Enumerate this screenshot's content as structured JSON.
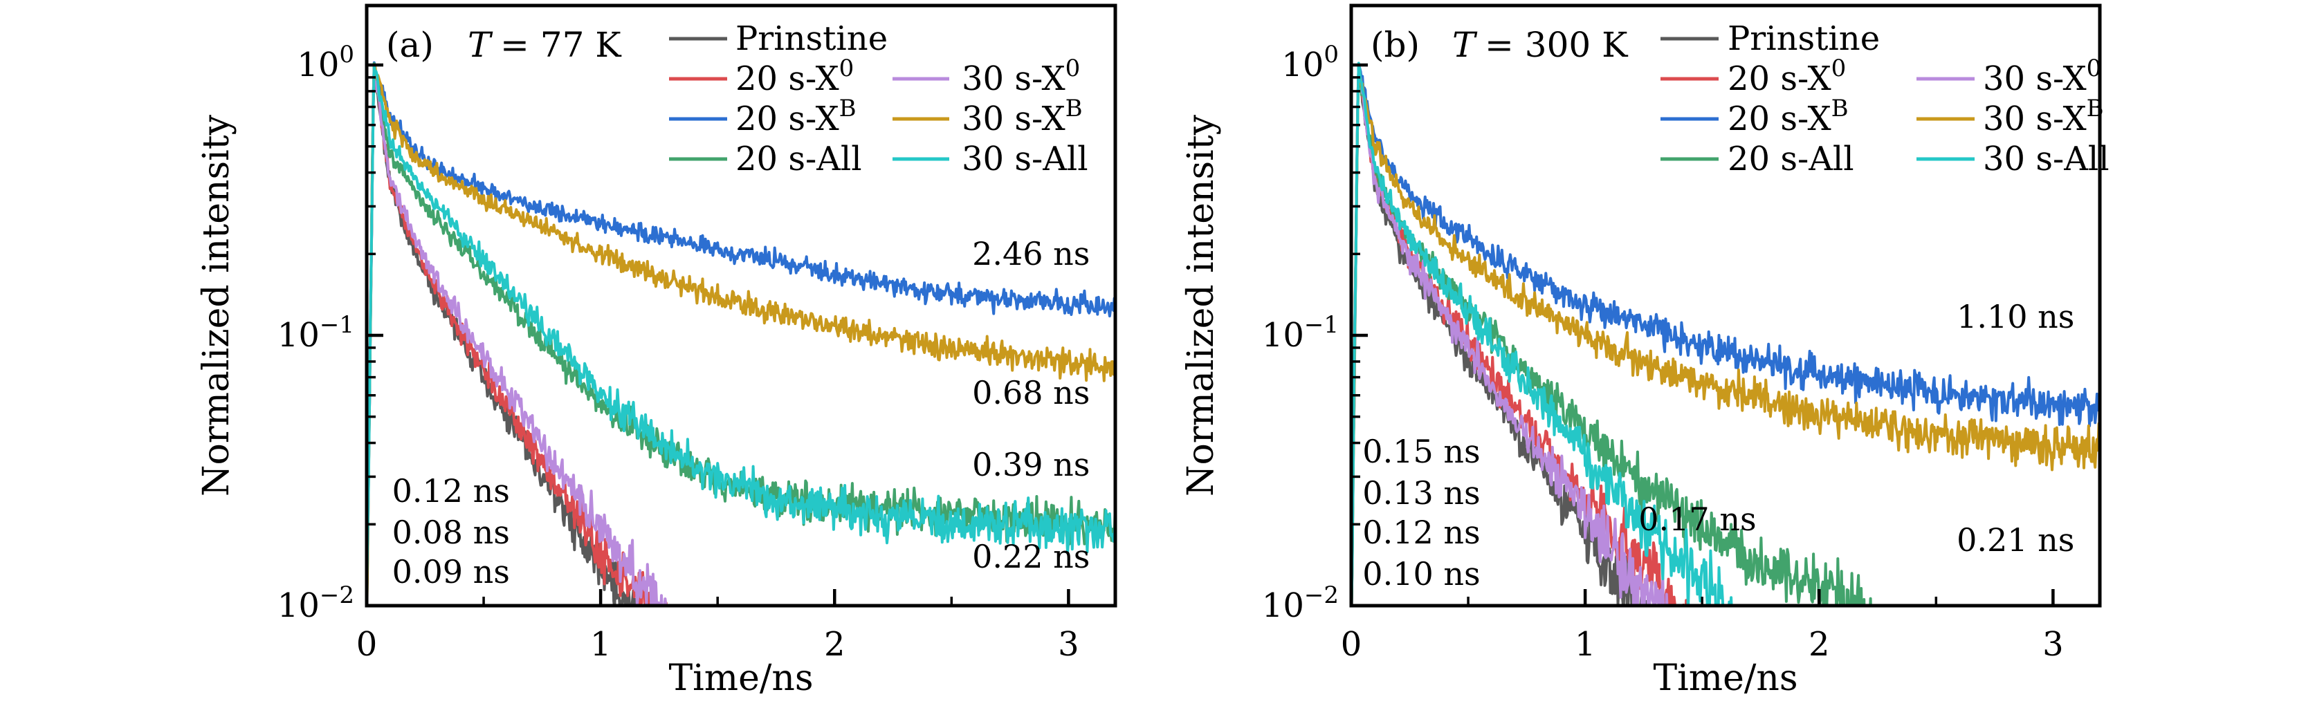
{
  "chart_data": [
    {
      "type": "line",
      "panel_index_label": "(a)",
      "temperature_label": {
        "symbol": "T",
        "rest": "= 77 K"
      },
      "xlabel": "Time/ns",
      "ylabel": "Normalized intensity",
      "xlim": [
        0,
        3.2
      ],
      "x_major_ticks": [
        0,
        1,
        2,
        3
      ],
      "x_minor_ticks": [
        0.5,
        1.5,
        2.5
      ],
      "yscale": "log",
      "ylim_log10": [
        -2,
        0.22
      ],
      "y_major_ticks": [
        {
          "log10": 0,
          "mantissa": "10",
          "exponent": "0"
        },
        {
          "log10": -1,
          "mantissa": "10",
          "exponent": "−1"
        },
        {
          "log10": -2,
          "mantissa": "10",
          "exponent": "−2"
        }
      ],
      "legend": {
        "columns": [
          [
            0,
            1,
            2,
            3
          ],
          [
            4,
            5,
            6
          ]
        ]
      },
      "noise_model": {
        "base": 0.018,
        "coef": 0.1,
        "cap": 0.26
      },
      "samples_per_ns": 250,
      "series": [
        {
          "label": "Prinstine",
          "label_sup": "",
          "color": "#595959",
          "lifetime": "0.09 ns",
          "annotation": {
            "text": "0.09 ns",
            "t": 0.36,
            "log10_v": -1.875
          },
          "curve_log10": [
            [
              0,
              -2.05
            ],
            [
              0.03,
              0
            ],
            [
              0.1,
              -0.45
            ],
            [
              0.2,
              -0.68
            ],
            [
              0.3,
              -0.86
            ],
            [
              0.4,
              -1.0
            ],
            [
              0.5,
              -1.15
            ],
            [
              0.75,
              -1.52
            ],
            [
              1.0,
              -1.87
            ],
            [
              1.12,
              -2.0
            ],
            [
              1.3,
              -2.3
            ]
          ]
        },
        {
          "label": "20 s-X",
          "label_sup": "0",
          "color": "#dc4b4e",
          "lifetime": "0.08 ns",
          "annotation": {
            "text": "0.08 ns",
            "t": 0.36,
            "log10_v": -1.729
          },
          "curve_log10": [
            [
              0,
              -2.05
            ],
            [
              0.03,
              0
            ],
            [
              0.1,
              -0.44
            ],
            [
              0.2,
              -0.66
            ],
            [
              0.3,
              -0.84
            ],
            [
              0.4,
              -0.98
            ],
            [
              0.5,
              -1.12
            ],
            [
              0.75,
              -1.47
            ],
            [
              1.0,
              -1.8
            ],
            [
              1.2,
              -2.02
            ],
            [
              1.35,
              -2.3
            ]
          ]
        },
        {
          "label": "20 s-X",
          "label_sup": "B",
          "color": "#2c6fd1",
          "lifetime": "2.46 ns",
          "annotation": {
            "text": "2.46 ns",
            "t": 2.84,
            "log10_v": -0.698
          },
          "curve_log10": [
            [
              0,
              -2.05
            ],
            [
              0.03,
              0
            ],
            [
              0.1,
              -0.19
            ],
            [
              0.2,
              -0.31
            ],
            [
              0.3,
              -0.38
            ],
            [
              0.5,
              -0.46
            ],
            [
              0.75,
              -0.535
            ],
            [
              1.0,
              -0.59
            ],
            [
              1.5,
              -0.68
            ],
            [
              2.0,
              -0.775
            ],
            [
              2.5,
              -0.85
            ],
            [
              3.2,
              -0.9
            ]
          ]
        },
        {
          "label": "20 s-All",
          "label_sup": "",
          "color": "#42a36c",
          "lifetime": "0.39 ns",
          "annotation": {
            "text": "0.39 ns",
            "t": 2.84,
            "log10_v": -1.478
          },
          "curve_log10": [
            [
              0,
              -2.05
            ],
            [
              0.03,
              0
            ],
            [
              0.1,
              -0.33
            ],
            [
              0.25,
              -0.52
            ],
            [
              0.5,
              -0.77
            ],
            [
              0.75,
              -1.02
            ],
            [
              1.0,
              -1.26
            ],
            [
              1.25,
              -1.42
            ],
            [
              1.5,
              -1.54
            ],
            [
              1.75,
              -1.6
            ],
            [
              2.0,
              -1.63
            ],
            [
              2.5,
              -1.66
            ],
            [
              3.2,
              -1.7
            ]
          ]
        },
        {
          "label": "30 s-X",
          "label_sup": "0",
          "color": "#b98bdd",
          "lifetime": "0.12 ns",
          "annotation": {
            "text": "0.12 ns",
            "t": 0.36,
            "log10_v": -1.576
          },
          "curve_log10": [
            [
              0,
              -2.05
            ],
            [
              0.03,
              0
            ],
            [
              0.1,
              -0.42
            ],
            [
              0.2,
              -0.63
            ],
            [
              0.3,
              -0.8
            ],
            [
              0.4,
              -0.94
            ],
            [
              0.5,
              -1.07
            ],
            [
              0.75,
              -1.4
            ],
            [
              1.0,
              -1.72
            ],
            [
              1.28,
              -2.02
            ],
            [
              1.45,
              -2.3
            ]
          ]
        },
        {
          "label": "30 s-X",
          "label_sup": "B",
          "color": "#c9991c",
          "lifetime": "0.68 ns",
          "annotation": {
            "text": "0.68 ns",
            "t": 2.84,
            "log10_v": -1.212
          },
          "curve_log10": [
            [
              0,
              -2.05
            ],
            [
              0.03,
              0
            ],
            [
              0.1,
              -0.21
            ],
            [
              0.2,
              -0.33
            ],
            [
              0.3,
              -0.4
            ],
            [
              0.5,
              -0.5
            ],
            [
              0.75,
              -0.6
            ],
            [
              1.0,
              -0.7
            ],
            [
              1.5,
              -0.86
            ],
            [
              2.0,
              -0.97
            ],
            [
              2.5,
              -1.05
            ],
            [
              3.2,
              -1.12
            ]
          ]
        },
        {
          "label": "30 s-All",
          "label_sup": "",
          "color": "#25c7c7",
          "lifetime": "0.22 ns",
          "annotation": {
            "text": "0.22 ns",
            "t": 2.84,
            "log10_v": -1.818
          },
          "curve_log10": [
            [
              0,
              -2.05
            ],
            [
              0.03,
              0
            ],
            [
              0.1,
              -0.28
            ],
            [
              0.25,
              -0.47
            ],
            [
              0.5,
              -0.72
            ],
            [
              0.75,
              -0.97
            ],
            [
              1.0,
              -1.21
            ],
            [
              1.25,
              -1.4
            ],
            [
              1.5,
              -1.53
            ],
            [
              1.75,
              -1.61
            ],
            [
              2.0,
              -1.65
            ],
            [
              2.5,
              -1.69
            ],
            [
              3.2,
              -1.72
            ]
          ]
        }
      ]
    },
    {
      "type": "line",
      "panel_index_label": "(b)",
      "temperature_label": {
        "symbol": "T",
        "rest": "= 300 K"
      },
      "xlabel": "Time/ns",
      "ylabel": "Normalized intensity",
      "xlim": [
        0,
        3.2
      ],
      "x_major_ticks": [
        0,
        1,
        2,
        3
      ],
      "x_minor_ticks": [
        0.5,
        1.5,
        2.5
      ],
      "yscale": "log",
      "ylim_log10": [
        -2,
        0.22
      ],
      "y_major_ticks": [
        {
          "log10": 0,
          "mantissa": "10",
          "exponent": "0"
        },
        {
          "log10": -1,
          "mantissa": "10",
          "exponent": "−1"
        },
        {
          "log10": -2,
          "mantissa": "10",
          "exponent": "−2"
        }
      ],
      "legend": {
        "columns": [
          [
            0,
            1,
            2,
            3
          ],
          [
            4,
            5,
            6
          ]
        ]
      },
      "noise_model": {
        "base": 0.022,
        "coef": 0.13,
        "cap": 0.33
      },
      "samples_per_ns": 250,
      "series": [
        {
          "label": "Prinstine",
          "label_sup": "",
          "color": "#595959",
          "lifetime": "0.10 ns",
          "annotation": {
            "text": "0.10 ns",
            "t": 0.3,
            "log10_v": -1.882,
            "color": "#111111"
          },
          "curve_log10": [
            [
              0,
              -2.05
            ],
            [
              0.03,
              0
            ],
            [
              0.1,
              -0.45
            ],
            [
              0.25,
              -0.75
            ],
            [
              0.5,
              -1.09
            ],
            [
              0.75,
              -1.42
            ],
            [
              1.0,
              -1.73
            ],
            [
              1.22,
              -2.0
            ],
            [
              1.35,
              -2.3
            ]
          ]
        },
        {
          "label": "20 s-X",
          "label_sup": "0",
          "color": "#dc4b4e",
          "lifetime": "0.13 ns",
          "annotation": {
            "text": "0.13 ns",
            "t": 0.3,
            "log10_v": -1.583
          },
          "curve_log10": [
            [
              0,
              -2.05
            ],
            [
              0.03,
              0
            ],
            [
              0.1,
              -0.42
            ],
            [
              0.25,
              -0.7
            ],
            [
              0.5,
              -1.02
            ],
            [
              0.75,
              -1.32
            ],
            [
              1.0,
              -1.6
            ],
            [
              1.25,
              -1.86
            ],
            [
              1.42,
              -2.05
            ],
            [
              1.55,
              -2.3
            ]
          ]
        },
        {
          "label": "20 s-X",
          "label_sup": "B",
          "color": "#2c6fd1",
          "lifetime": "1.10 ns",
          "annotation": {
            "text": "1.10 ns",
            "t": 2.84,
            "log10_v": -0.931
          },
          "curve_log10": [
            [
              0,
              -2.05
            ],
            [
              0.03,
              0
            ],
            [
              0.1,
              -0.27
            ],
            [
              0.2,
              -0.42
            ],
            [
              0.3,
              -0.52
            ],
            [
              0.5,
              -0.65
            ],
            [
              0.75,
              -0.78
            ],
            [
              1.0,
              -0.89
            ],
            [
              1.25,
              -0.97
            ],
            [
              1.5,
              -1.04
            ],
            [
              2.0,
              -1.14
            ],
            [
              2.5,
              -1.22
            ],
            [
              3.2,
              -1.27
            ]
          ]
        },
        {
          "label": "20 s-All",
          "label_sup": "",
          "color": "#42a36c",
          "lifetime": "0.17 ns",
          "annotation": {
            "text": "0.17 ns",
            "t": 1.48,
            "log10_v": -1.68
          },
          "curve_log10": [
            [
              0,
              -2.05
            ],
            [
              0.03,
              0
            ],
            [
              0.1,
              -0.4
            ],
            [
              0.25,
              -0.65
            ],
            [
              0.5,
              -0.9
            ],
            [
              0.75,
              -1.13
            ],
            [
              1.0,
              -1.35
            ],
            [
              1.25,
              -1.55
            ],
            [
              1.5,
              -1.71
            ],
            [
              1.75,
              -1.84
            ],
            [
              2.0,
              -1.95
            ],
            [
              2.2,
              -2.05
            ],
            [
              2.35,
              -2.3
            ]
          ]
        },
        {
          "label": "30 s-X",
          "label_sup": "0",
          "color": "#b98bdd",
          "lifetime": "0.12 ns",
          "annotation": {
            "text": "0.12 ns",
            "t": 0.3,
            "log10_v": -1.729
          },
          "curve_log10": [
            [
              0,
              -2.05
            ],
            [
              0.03,
              0
            ],
            [
              0.1,
              -0.43
            ],
            [
              0.25,
              -0.72
            ],
            [
              0.5,
              -1.05
            ],
            [
              0.75,
              -1.37
            ],
            [
              1.0,
              -1.66
            ],
            [
              1.3,
              -2.0
            ],
            [
              1.45,
              -2.3
            ]
          ]
        },
        {
          "label": "30 s-X",
          "label_sup": "B",
          "color": "#c9991c",
          "lifetime": "0.21 ns",
          "annotation": {
            "text": "0.21 ns",
            "t": 2.84,
            "log10_v": -1.757
          },
          "curve_log10": [
            [
              0,
              -2.05
            ],
            [
              0.03,
              0
            ],
            [
              0.1,
              -0.3
            ],
            [
              0.2,
              -0.46
            ],
            [
              0.3,
              -0.57
            ],
            [
              0.5,
              -0.72
            ],
            [
              0.75,
              -0.88
            ],
            [
              1.0,
              -1.0
            ],
            [
              1.25,
              -1.1
            ],
            [
              1.5,
              -1.18
            ],
            [
              2.0,
              -1.29
            ],
            [
              2.5,
              -1.37
            ],
            [
              3.2,
              -1.43
            ]
          ]
        },
        {
          "label": "30 s-All",
          "label_sup": "",
          "color": "#25c7c7",
          "lifetime": "0.15 ns",
          "annotation": {
            "text": "0.15 ns",
            "t": 0.3,
            "log10_v": -1.43
          },
          "curve_log10": [
            [
              0,
              -2.05
            ],
            [
              0.03,
              0
            ],
            [
              0.1,
              -0.38
            ],
            [
              0.25,
              -0.63
            ],
            [
              0.5,
              -0.92
            ],
            [
              0.75,
              -1.18
            ],
            [
              1.0,
              -1.45
            ],
            [
              1.25,
              -1.7
            ],
            [
              1.5,
              -1.93
            ],
            [
              1.62,
              -2.05
            ],
            [
              1.75,
              -2.3
            ]
          ]
        }
      ]
    }
  ]
}
